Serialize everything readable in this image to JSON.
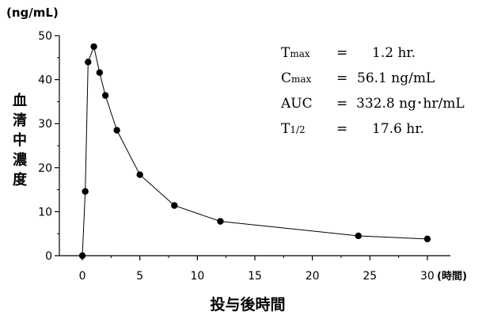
{
  "chart_data": {
    "type": "line",
    "ylabel_unit": "(ng/mL)",
    "ylabel_chars": [
      "血",
      "清",
      "中",
      "濃",
      "度"
    ],
    "xlabel": "投与後時間",
    "xlabel_unit": "(時間)",
    "xlim": [
      -2,
      32
    ],
    "ylim": [
      0,
      50
    ],
    "x_ticks": [
      0,
      5,
      10,
      15,
      20,
      25,
      30
    ],
    "y_ticks": [
      0,
      10,
      20,
      30,
      40,
      50
    ],
    "series": [
      {
        "x": [
          0,
          0.25,
          0.5,
          1.0,
          1.5,
          2.0,
          3.0,
          5.0,
          8.0,
          12.0,
          24.0,
          30.0
        ],
        "y": [
          0,
          14.6,
          44.0,
          47.5,
          41.6,
          36.4,
          28.5,
          18.4,
          11.4,
          7.8,
          4.5,
          3.8
        ]
      }
    ],
    "grid": false,
    "annotations": [
      {
        "name": "T",
        "sub": "max",
        "eq": "=",
        "value": "1.2 hr."
      },
      {
        "name": "C",
        "sub": "max",
        "eq": "=",
        "value": "56.1 ng/mL"
      },
      {
        "name": "AUC",
        "sub": "",
        "eq": "=",
        "value": "332.8 ng･hr/mL"
      },
      {
        "name": "T",
        "sub": "1/2",
        "eq": "=",
        "value": "17.6 hr."
      }
    ]
  }
}
